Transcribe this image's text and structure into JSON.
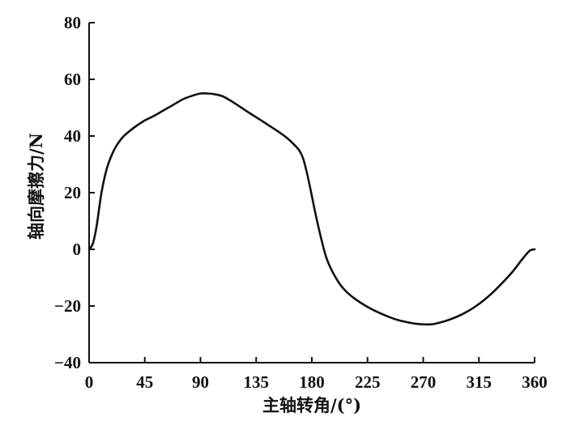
{
  "chart_data": {
    "type": "line",
    "title": "",
    "xlabel": "主轴转角/(°)",
    "ylabel": "轴向摩擦力/N",
    "xlim": [
      0,
      360
    ],
    "ylim": [
      -40,
      80
    ],
    "xticks": [
      0,
      45,
      90,
      135,
      180,
      225,
      270,
      315,
      360
    ],
    "yticks": [
      -40,
      -20,
      0,
      20,
      40,
      60,
      80
    ],
    "ytick_labels": [
      "−40",
      "−20",
      "0",
      "20",
      "40",
      "60",
      "80"
    ],
    "grid": false,
    "series": [
      {
        "x": [
          0,
          3,
          6,
          10,
          14,
          18,
          22,
          27,
          32,
          38,
          45,
          52,
          60,
          68,
          76,
          84,
          90,
          96,
          102,
          108,
          115,
          122,
          130,
          138,
          145,
          152,
          160,
          166,
          170,
          173,
          176,
          179,
          182,
          185,
          188,
          191,
          194,
          198,
          203,
          208,
          214,
          220,
          227,
          234,
          242,
          250,
          258,
          265,
          272,
          278,
          284,
          290,
          296,
          302,
          310,
          318,
          326,
          334,
          342,
          350,
          356,
          360
        ],
        "y": [
          0,
          2,
          8,
          20,
          28,
          33,
          36.5,
          39.5,
          41.5,
          43.5,
          45.5,
          47,
          49,
          51,
          53,
          54.3,
          55,
          55,
          54.7,
          54,
          52.3,
          50.3,
          48,
          45.8,
          43.8,
          41.8,
          39.3,
          36.8,
          34.8,
          32,
          27,
          21,
          14.5,
          8.5,
          3,
          -2,
          -5.5,
          -9,
          -12.5,
          -15,
          -17.2,
          -19,
          -20.8,
          -22.3,
          -23.8,
          -25,
          -25.8,
          -26.3,
          -26.5,
          -26.4,
          -25.8,
          -25,
          -24,
          -22.8,
          -20.8,
          -18.3,
          -15.3,
          -11.8,
          -8,
          -3.5,
          -0.5,
          0
        ]
      }
    ]
  }
}
